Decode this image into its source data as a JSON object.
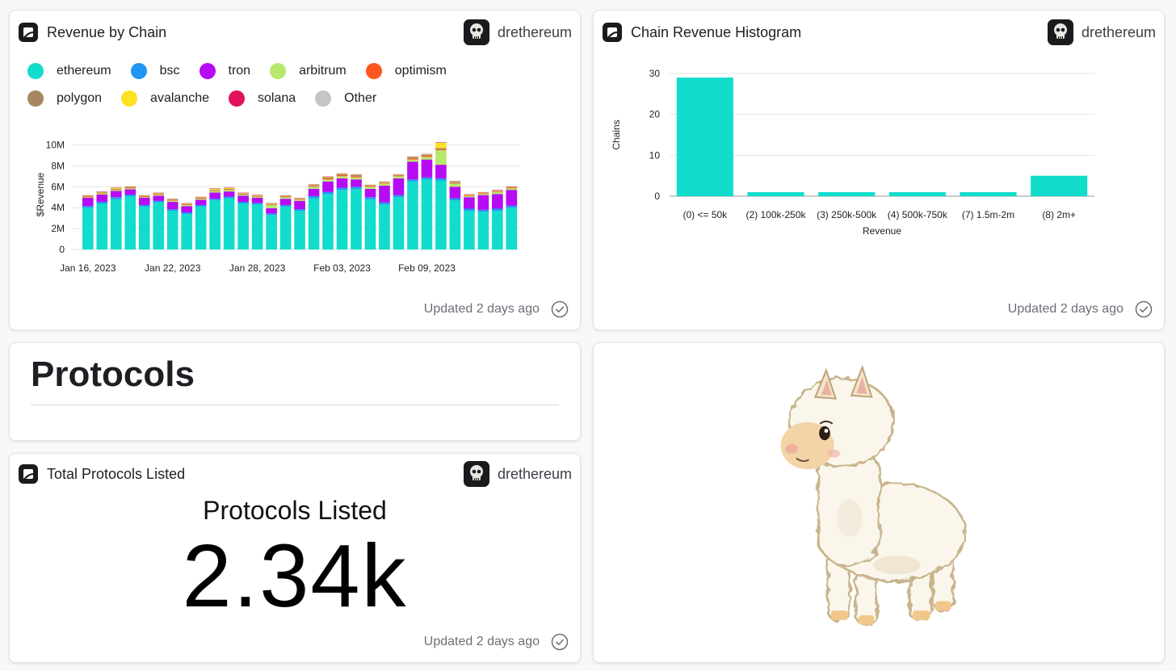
{
  "author": "drethereum",
  "updated_text": "Updated 2 days ago",
  "revenue_card": {
    "title": "Revenue by Chain",
    "legend": [
      {
        "label": "ethereum",
        "color": "#12dccb"
      },
      {
        "label": "bsc",
        "color": "#2196f3"
      },
      {
        "label": "tron",
        "color": "#b60bf4"
      },
      {
        "label": "arbitrum",
        "color": "#b6e86e"
      },
      {
        "label": "optimism",
        "color": "#ff5722"
      },
      {
        "label": "polygon",
        "color": "#a78761"
      },
      {
        "label": "avalanche",
        "color": "#fde221"
      },
      {
        "label": "solana",
        "color": "#e2115b"
      },
      {
        "label": "Other",
        "color": "#c5c5c5"
      }
    ]
  },
  "histogram_card": {
    "title": "Chain Revenue Histogram"
  },
  "protocols_section": {
    "title": "Protocols"
  },
  "total_card": {
    "title": "Total Protocols Listed",
    "label": "Protocols Listed",
    "value": "2.34k"
  },
  "llama_card": {
    "image_icon": "llama-illustration"
  },
  "chart_data": [
    {
      "type": "bar",
      "stacked": true,
      "title": "Revenue by Chain",
      "xlabel": "",
      "ylabel": "$Revenue",
      "ylim": [
        0,
        10500000
      ],
      "yticks": [
        "0",
        "2M",
        "4M",
        "6M",
        "8M",
        "10M"
      ],
      "ytick_values": [
        0,
        2000000,
        4000000,
        6000000,
        8000000,
        10000000
      ],
      "xtick_labels": [
        "Jan 16, 2023",
        "Jan 22, 2023",
        "Jan 28, 2023",
        "Feb 03, 2023",
        "Feb 09, 2023"
      ],
      "xtick_index": [
        0,
        6,
        12,
        18,
        24
      ],
      "grid": true,
      "legend_position": "top",
      "categories": [
        "2023-01-16",
        "2023-01-17",
        "2023-01-18",
        "2023-01-19",
        "2023-01-20",
        "2023-01-21",
        "2023-01-22",
        "2023-01-23",
        "2023-01-24",
        "2023-01-25",
        "2023-01-26",
        "2023-01-27",
        "2023-01-28",
        "2023-01-29",
        "2023-01-30",
        "2023-01-31",
        "2023-02-01",
        "2023-02-02",
        "2023-02-03",
        "2023-02-04",
        "2023-02-05",
        "2023-02-06",
        "2023-02-07",
        "2023-02-08",
        "2023-02-09",
        "2023-02-10",
        "2023-02-11",
        "2023-02-12",
        "2023-02-13",
        "2023-02-14",
        "2023-02-15"
      ],
      "series": [
        {
          "name": "ethereum",
          "color": "#12dccb",
          "values": [
            4000000,
            4400000,
            4800000,
            5100000,
            4100000,
            4500000,
            3700000,
            3400000,
            4100000,
            4700000,
            4900000,
            4400000,
            4300000,
            3300000,
            4100000,
            3700000,
            4900000,
            5300000,
            5700000,
            5800000,
            4800000,
            4300000,
            5000000,
            6500000,
            6700000,
            6600000,
            4700000,
            3700000,
            3600000,
            3700000,
            4000000
          ]
        },
        {
          "name": "bsc",
          "color": "#2196f3",
          "values": [
            150000,
            150000,
            200000,
            150000,
            150000,
            150000,
            150000,
            150000,
            150000,
            150000,
            150000,
            150000,
            150000,
            150000,
            150000,
            150000,
            200000,
            200000,
            200000,
            200000,
            200000,
            200000,
            200000,
            200000,
            200000,
            200000,
            200000,
            200000,
            200000,
            200000,
            200000
          ]
        },
        {
          "name": "tron",
          "color": "#b60bf4",
          "values": [
            800000,
            700000,
            600000,
            500000,
            700000,
            500000,
            700000,
            600000,
            500000,
            600000,
            500000,
            600000,
            500000,
            500000,
            600000,
            800000,
            700000,
            1000000,
            900000,
            700000,
            800000,
            1600000,
            1600000,
            1700000,
            1700000,
            1300000,
            1100000,
            1100000,
            1400000,
            1400000,
            1500000
          ]
        },
        {
          "name": "arbitrum",
          "color": "#b6e86e",
          "values": [
            50000,
            100000,
            100000,
            100000,
            50000,
            100000,
            100000,
            100000,
            100000,
            150000,
            150000,
            100000,
            100000,
            300000,
            150000,
            100000,
            200000,
            200000,
            200000,
            200000,
            200000,
            200000,
            200000,
            200000,
            250000,
            1400000,
            300000,
            100000,
            100000,
            200000,
            150000
          ]
        },
        {
          "name": "optimism",
          "color": "#ff5722",
          "values": [
            50000,
            50000,
            50000,
            50000,
            50000,
            50000,
            50000,
            50000,
            50000,
            50000,
            50000,
            50000,
            50000,
            50000,
            50000,
            50000,
            50000,
            100000,
            100000,
            100000,
            50000,
            50000,
            50000,
            100000,
            100000,
            100000,
            50000,
            50000,
            50000,
            50000,
            50000
          ]
        },
        {
          "name": "polygon",
          "color": "#a78761",
          "values": [
            50000,
            50000,
            50000,
            50000,
            50000,
            50000,
            50000,
            50000,
            50000,
            50000,
            50000,
            50000,
            50000,
            50000,
            50000,
            50000,
            100000,
            100000,
            100000,
            100000,
            50000,
            50000,
            50000,
            100000,
            100000,
            100000,
            100000,
            50000,
            50000,
            50000,
            50000
          ]
        },
        {
          "name": "avalanche",
          "color": "#fde221",
          "values": [
            50000,
            50000,
            100000,
            50000,
            50000,
            50000,
            50000,
            50000,
            50000,
            100000,
            100000,
            50000,
            50000,
            50000,
            50000,
            50000,
            50000,
            50000,
            50000,
            50000,
            50000,
            50000,
            50000,
            50000,
            50000,
            500000,
            50000,
            50000,
            50000,
            50000,
            50000
          ]
        },
        {
          "name": "solana",
          "color": "#e2115b",
          "values": [
            30000,
            30000,
            30000,
            30000,
            30000,
            30000,
            30000,
            30000,
            30000,
            30000,
            30000,
            30000,
            30000,
            30000,
            30000,
            30000,
            30000,
            30000,
            30000,
            30000,
            30000,
            30000,
            30000,
            30000,
            30000,
            30000,
            30000,
            30000,
            30000,
            30000,
            30000
          ]
        },
        {
          "name": "Other",
          "color": "#c5c5c5",
          "values": [
            30000,
            30000,
            30000,
            30000,
            30000,
            30000,
            30000,
            30000,
            30000,
            30000,
            30000,
            30000,
            30000,
            30000,
            30000,
            30000,
            30000,
            30000,
            30000,
            30000,
            30000,
            30000,
            30000,
            30000,
            30000,
            30000,
            30000,
            30000,
            30000,
            30000,
            30000
          ]
        }
      ]
    },
    {
      "type": "bar",
      "title": "Chain Revenue Histogram",
      "xlabel": "Revenue",
      "ylabel": "Chains",
      "ylim": [
        0,
        30
      ],
      "yticks": [
        0,
        10,
        20,
        30
      ],
      "grid": true,
      "color": "#12dccb",
      "categories": [
        "(0) <= 50k",
        "(2) 100k-250k",
        "(3) 250k-500k",
        "(4) 500k-750k",
        "(7) 1.5m-2m",
        "(8) 2m+"
      ],
      "values": [
        29,
        1,
        1,
        1,
        1,
        5
      ]
    }
  ]
}
